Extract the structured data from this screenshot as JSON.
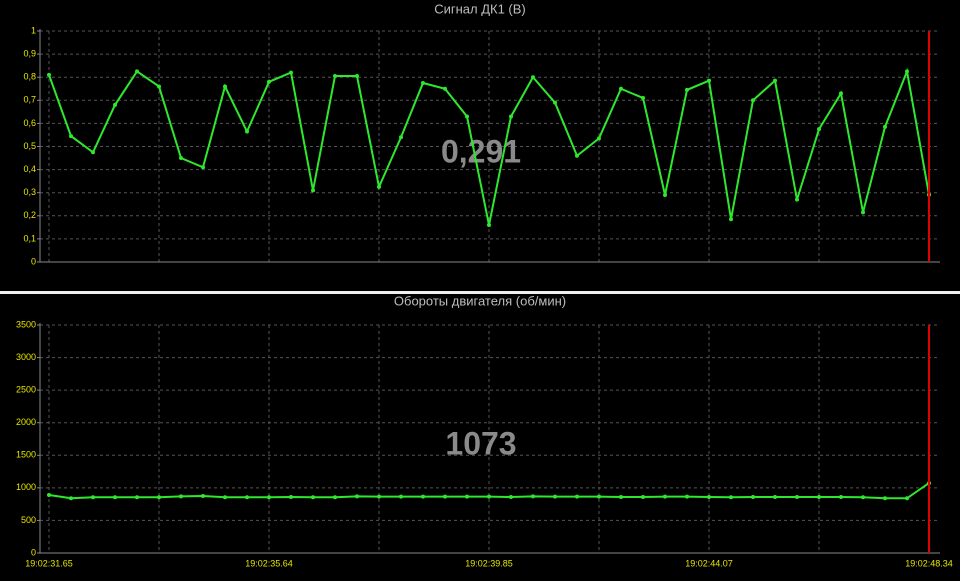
{
  "chart_data": [
    {
      "type": "line",
      "title": "Сигнал ДК1  (В)",
      "annotation": "0,291",
      "series": [
        {
          "name": null,
          "color": "#2ee82e",
          "values": [
            0.81,
            0.545,
            0.475,
            0.68,
            0.825,
            0.76,
            0.45,
            0.41,
            0.76,
            0.565,
            0.78,
            0.82,
            0.31,
            0.805,
            0.805,
            0.325,
            0.54,
            0.775,
            0.75,
            0.63,
            0.16,
            0.63,
            0.8,
            0.69,
            0.46,
            0.535,
            0.75,
            0.71,
            0.29,
            0.745,
            0.785,
            0.185,
            0.7,
            0.785,
            0.27,
            0.575,
            0.73,
            0.215,
            0.585,
            0.825,
            0.291
          ]
        }
      ],
      "ylim": [
        0,
        1
      ],
      "yticks": [
        0,
        {
          "value": 0.1,
          "label": "0,1"
        },
        {
          "value": 0.2,
          "label": "0,2"
        },
        {
          "value": 0.3,
          "label": "0,3"
        },
        {
          "value": 0.4,
          "label": "0,4"
        },
        {
          "value": 0.5,
          "label": "0,5"
        },
        {
          "value": 0.6,
          "label": "0,6"
        },
        {
          "value": 0.7,
          "label": "0,7"
        },
        {
          "value": 0.8,
          "label": "0,8"
        },
        {
          "value": 0.9,
          "label": "0,9"
        },
        1
      ],
      "grid": true,
      "cursor_color": "#e00000"
    },
    {
      "type": "line",
      "title": "Обороты двигателя   (об/мин)",
      "annotation": "1073",
      "categories": [
        "19:02:31.65",
        null,
        null,
        null,
        null,
        null,
        null,
        null,
        null,
        null,
        "19:02:35.64",
        null,
        null,
        null,
        null,
        null,
        null,
        null,
        null,
        null,
        "19:02:39.85",
        null,
        null,
        null,
        null,
        null,
        null,
        null,
        null,
        null,
        "19:02:44.07",
        null,
        null,
        null,
        null,
        null,
        null,
        null,
        null,
        null,
        "19:02:48.34"
      ],
      "series": [
        {
          "name": null,
          "color": "#2ee82e",
          "values": [
            890,
            840,
            855,
            855,
            855,
            855,
            870,
            875,
            855,
            855,
            855,
            860,
            855,
            855,
            870,
            865,
            865,
            865,
            865,
            865,
            865,
            860,
            870,
            865,
            865,
            865,
            860,
            860,
            865,
            865,
            860,
            855,
            860,
            860,
            860,
            860,
            860,
            855,
            840,
            840,
            1073
          ]
        }
      ],
      "ylim": [
        0,
        3500
      ],
      "yticks": [
        0,
        500,
        1000,
        1500,
        2000,
        2500,
        3000,
        3500
      ],
      "grid": true,
      "cursor_color": "#e00000"
    }
  ]
}
